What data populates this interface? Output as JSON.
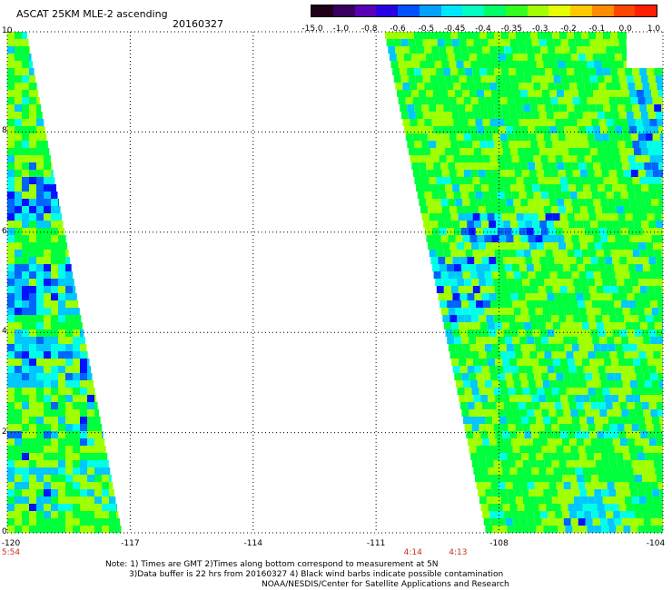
{
  "title": "ASCAT 25KM MLE-2 ascending",
  "date": "20160327",
  "colorbar": {
    "labels": [
      "-15.0",
      "-1.0",
      "-0.8",
      "-0.6",
      "-0.5",
      "-0.45",
      "-0.4",
      "-0.35",
      "-0.3",
      "-0.2",
      "-0.1",
      "0.0",
      "1.0"
    ],
    "colors": [
      "#1e0018",
      "#3a0060",
      "#5a00b4",
      "#2800e6",
      "#0050ff",
      "#00a0ff",
      "#00e6ff",
      "#00ffc0",
      "#00ff64",
      "#32ff1e",
      "#a0ff00",
      "#e6ff00",
      "#ffc800",
      "#ff8c00",
      "#ff4600",
      "#ff1e00"
    ]
  },
  "map": {
    "lon_range": [
      -120,
      -104
    ],
    "lat_range": [
      0,
      10
    ],
    "x_ticks": [
      "-120",
      "-117",
      "-114",
      "-111",
      "-108",
      "-104"
    ],
    "y_ticks": [
      "0",
      "2",
      "4",
      "6",
      "8",
      "10"
    ],
    "pass_times": [
      {
        "lon": -120,
        "label": "5:54"
      },
      {
        "lon": -110.1,
        "label": "4:14"
      },
      {
        "lon": -109.0,
        "label": "4:13"
      }
    ],
    "swath_colors": {
      "green": "#00ff3c",
      "yellowgreen": "#a0ff00",
      "cyan": "#00ffe6",
      "lightblue": "#00c8ff",
      "blue": "#0064ff",
      "darkblue": "#0014ff"
    }
  },
  "notes": [
    "Note: 1) Times are GMT 2)Times along bottom correspond to measurement at 5N",
    "3)Data buffer is 22 hrs from 20160327 4) Black wind barbs indicate possible contamination",
    "NOAA/NESDIS/Center for Satellite Applications and Research"
  ]
}
